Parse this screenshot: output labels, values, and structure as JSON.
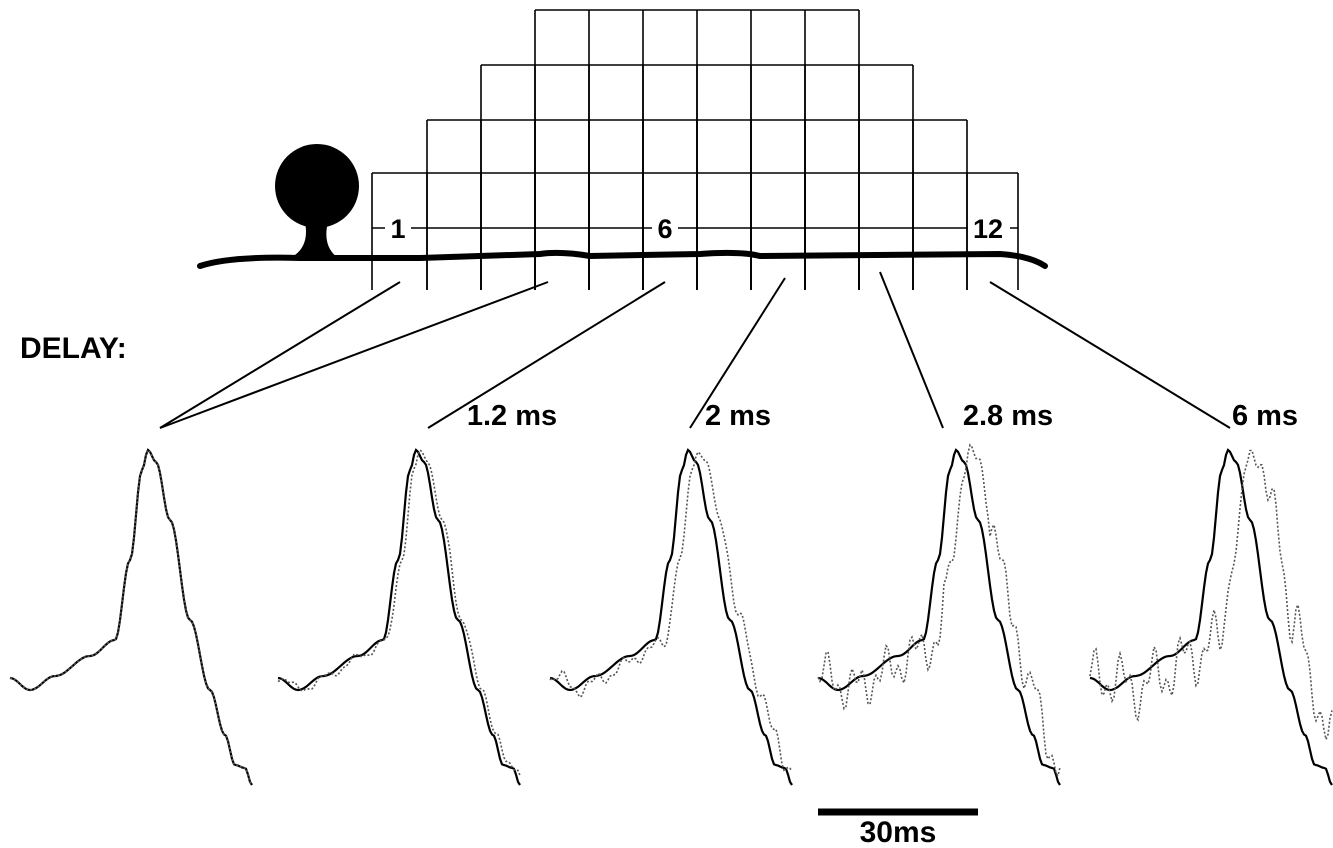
{
  "grid_labels": [
    "1",
    "6",
    "12"
  ],
  "delay_title": "DELAY:",
  "delays": [
    "1.2 ms",
    "2 ms",
    "2.8 ms",
    "6 ms"
  ],
  "scale_bar": "30ms"
}
